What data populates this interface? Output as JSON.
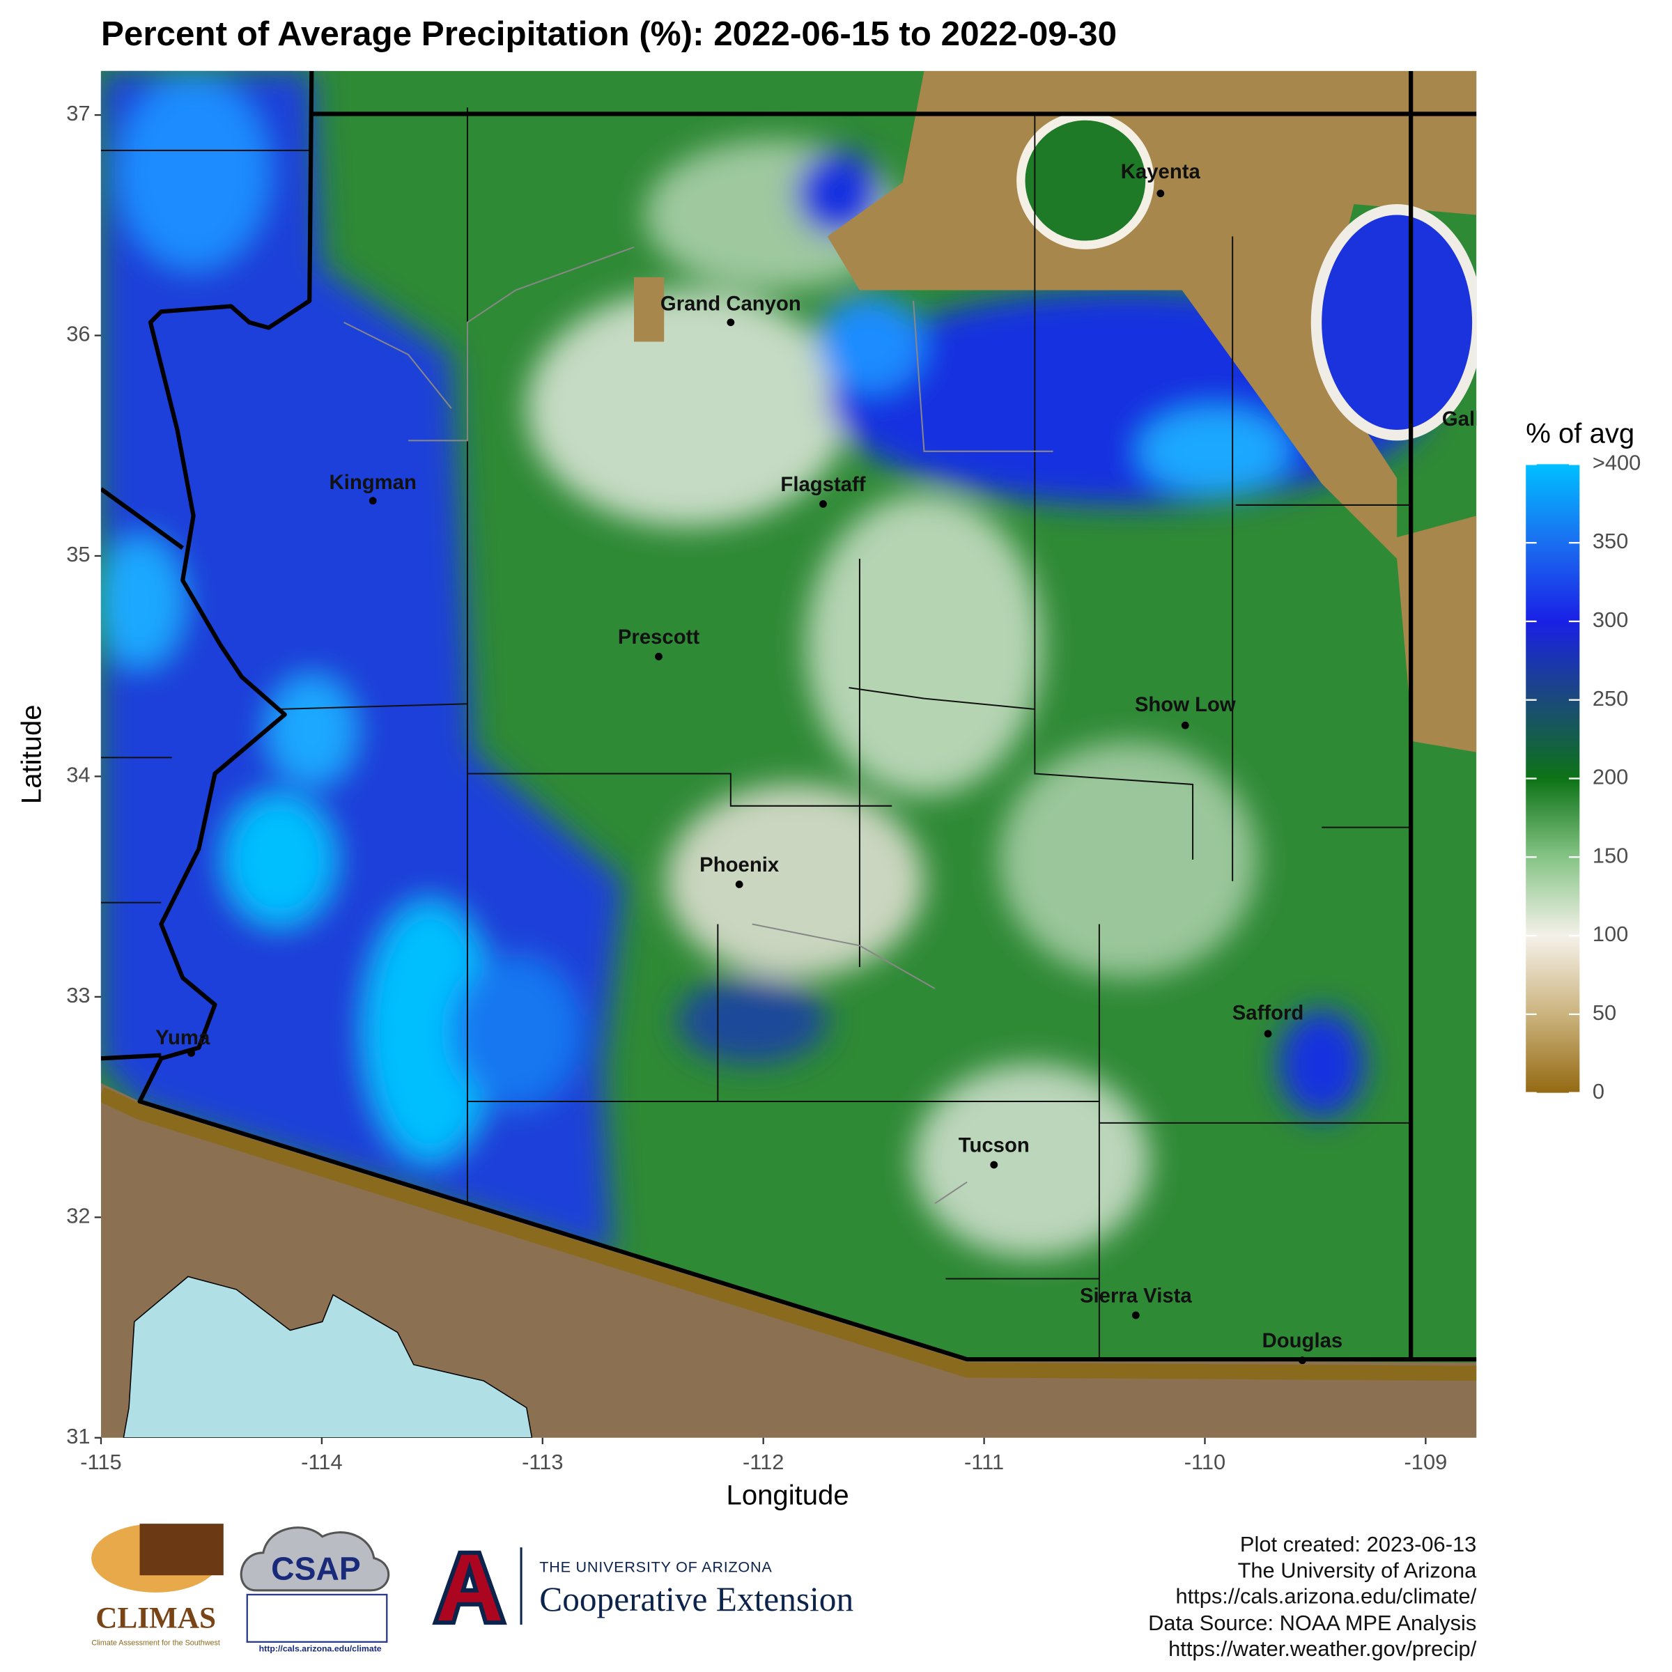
{
  "chart_data": {
    "type": "map",
    "title": "Percent of Average Precipitation (%): 2022-06-15 to 2022-09-30",
    "xlabel": "Longitude",
    "ylabel": "Latitude",
    "xlim": [
      -115,
      -108.77
    ],
    "ylim": [
      31,
      37.2
    ],
    "xticks": [
      -115,
      -114,
      -113,
      -112,
      -111,
      -110,
      -109
    ],
    "yticks": [
      31,
      32,
      33,
      34,
      35,
      36,
      37
    ],
    "colorbar": {
      "title": "% of avg",
      "lim": [
        0,
        400
      ],
      "ticks": [
        0,
        50,
        100,
        150,
        200,
        250,
        300,
        350,
        {
          "value": 400,
          "label": ">400"
        }
      ],
      "colors": [
        "#946912",
        "#cbb37e",
        "#f5f1ea",
        "#86c486",
        "#0d7316",
        "#1b4a7a",
        "#1a20e6",
        "#1a6ef0",
        "#00bfff"
      ]
    },
    "cities": [
      "Kayenta",
      "Grand Canyon",
      "Kingman",
      "Flagstaff",
      "Prescott",
      "Show Low",
      "Phoenix",
      "Safford",
      "Yuma",
      "Tucson",
      "Sierra Vista",
      "Douglas",
      "Gallup"
    ],
    "footer": [
      "Plot created: 2023-06-13",
      "The University of Arizona",
      "https://cals.arizona.edu/climate/",
      "Data Source: NOAA MPE Analysis",
      "https://water.weather.gov/precip/"
    ],
    "logos": {
      "climas": "CLIMAS",
      "climas_sub": "Climate Assessment for the Southwest",
      "csap": "CSAP",
      "csap_url": "http://cals.arizona.edu/climate",
      "ua": "THE UNIVERSITY OF ARIZONA",
      "ua_unit": "Cooperative Extension"
    }
  }
}
